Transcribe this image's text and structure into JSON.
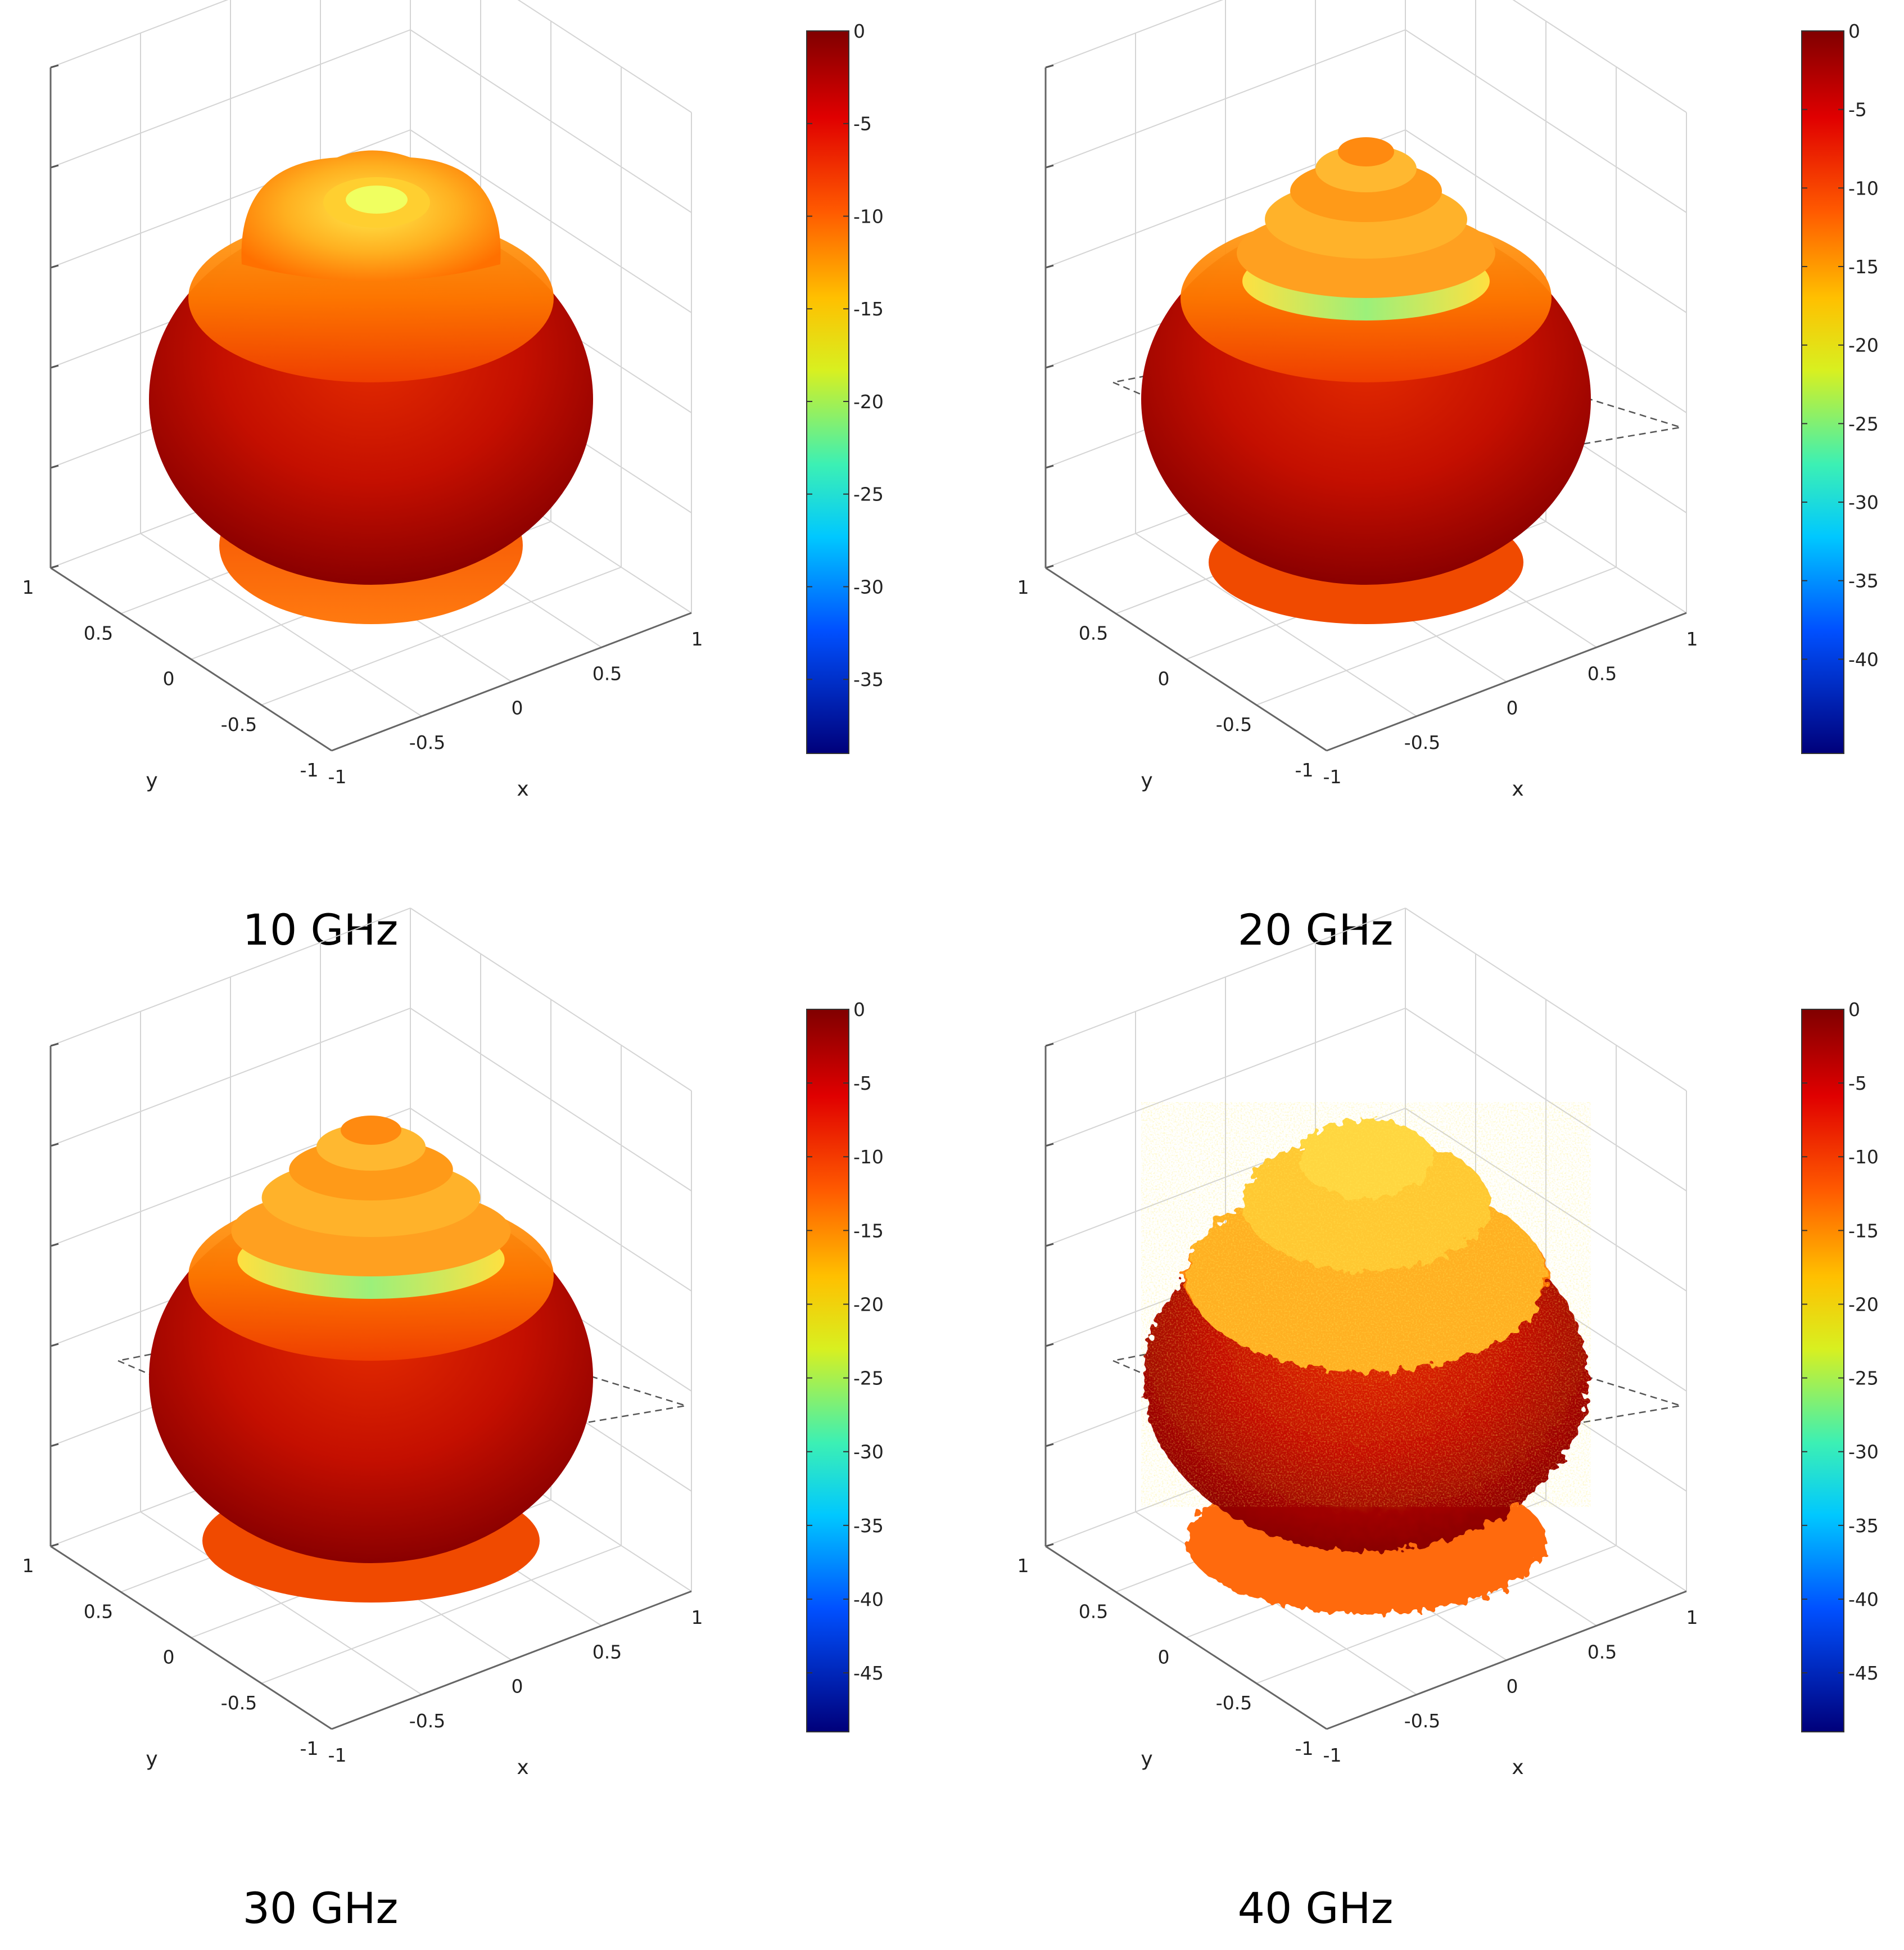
{
  "chart_data": [
    {
      "type": "surface3d",
      "caption": "10 GHz",
      "xlabel": "x",
      "ylabel": "y",
      "x_ticks": [
        "-1",
        "-0.5",
        "0",
        "0.5",
        "1"
      ],
      "y_ticks": [
        "1",
        "0.5",
        "0",
        "-0.5",
        "-1"
      ],
      "colorbar": {
        "ticks": [
          "0",
          "-5",
          "-10",
          "-15",
          "-20",
          "-25",
          "-30",
          "-35"
        ],
        "min": -39,
        "max": 0
      },
      "variant": "smooth",
      "grid": true
    },
    {
      "type": "surface3d",
      "caption": "20 GHz",
      "xlabel": "x",
      "ylabel": "y",
      "x_ticks": [
        "-1",
        "-0.5",
        "0",
        "0.5",
        "1"
      ],
      "y_ticks": [
        "1",
        "0.5",
        "0",
        "-0.5",
        "-1"
      ],
      "colorbar": {
        "ticks": [
          "0",
          "-5",
          "-10",
          "-15",
          "-20",
          "-25",
          "-30",
          "-35",
          "-40"
        ],
        "min": -46,
        "max": 0
      },
      "variant": "rings",
      "grid": true
    },
    {
      "type": "surface3d",
      "caption": "30 GHz",
      "xlabel": "x",
      "ylabel": "y",
      "x_ticks": [
        "-1",
        "-0.5",
        "0",
        "0.5",
        "1"
      ],
      "y_ticks": [
        "1",
        "0.5",
        "0",
        "-0.5",
        "-1"
      ],
      "colorbar": {
        "ticks": [
          "0",
          "-5",
          "-10",
          "-15",
          "-20",
          "-25",
          "-30",
          "-35",
          "-40",
          "-45"
        ],
        "min": -49,
        "max": 0
      },
      "variant": "rings",
      "grid": true
    },
    {
      "type": "surface3d",
      "caption": "40 GHz",
      "xlabel": "x",
      "ylabel": "y",
      "x_ticks": [
        "-1",
        "-0.5",
        "0",
        "0.5",
        "1"
      ],
      "y_ticks": [
        "1",
        "0.5",
        "0",
        "-0.5",
        "-1"
      ],
      "colorbar": {
        "ticks": [
          "0",
          "-5",
          "-10",
          "-15",
          "-20",
          "-25",
          "-30",
          "-35",
          "-40",
          "-45"
        ],
        "min": -49,
        "max": 0
      },
      "variant": "spiky",
      "grid": true
    }
  ]
}
